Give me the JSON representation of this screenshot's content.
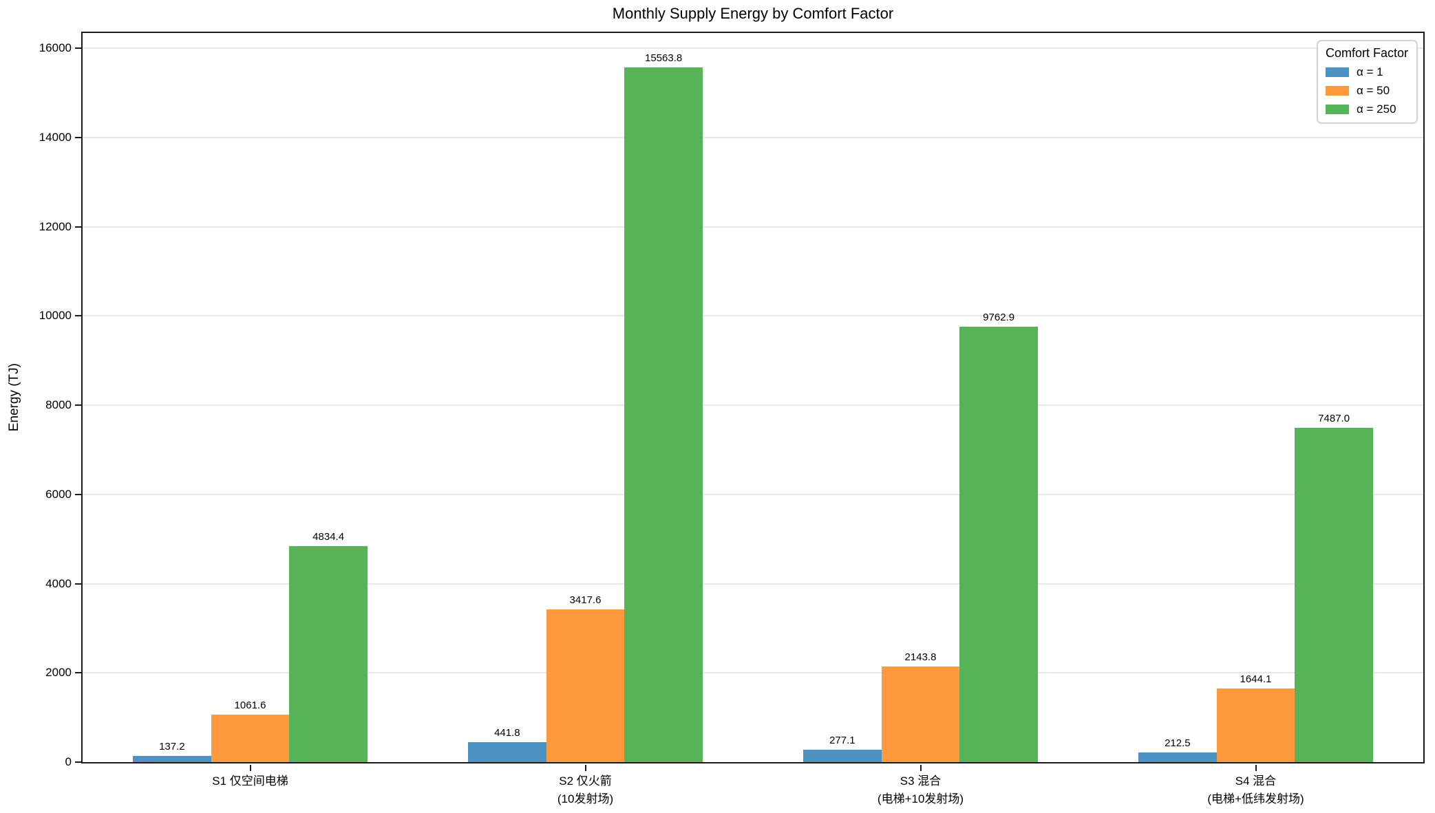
{
  "figure": {
    "title": "Monthly Supply Energy by Comfort Factor"
  },
  "chart_data": {
    "type": "bar",
    "title": "Monthly Supply Energy by Comfort Factor",
    "xlabel": "",
    "ylabel": "Energy (TJ)",
    "categories": [
      "S1 仅空间电梯",
      "S2 仅火箭\n(10发射场)",
      "S3 混合\n(电梯+10发射场)",
      "S4 混合\n(电梯+低纬发射场)"
    ],
    "series": [
      {
        "name": "α = 1",
        "color": "#4C92C3",
        "values": [
          137.2,
          441.8,
          277.1,
          212.5
        ]
      },
      {
        "name": "α = 50",
        "color": "#FF993E",
        "values": [
          1061.6,
          3417.6,
          2143.8,
          1644.1
        ]
      },
      {
        "name": "α = 250",
        "color": "#57B357",
        "values": [
          4834.4,
          15563.8,
          9762.9,
          7487.0
        ]
      }
    ],
    "bar_value_labels": true,
    "y_ticks": [
      0,
      2000,
      4000,
      6000,
      8000,
      10000,
      12000,
      14000,
      16000
    ],
    "ylim": [
      0,
      16342
    ],
    "grid": "horizontal-light",
    "legend": {
      "title": "Comfort Factor",
      "position": "upper-right"
    },
    "group_width_fraction": 0.7
  },
  "colors": {
    "background": "#ffffff",
    "axis": "#1a1a1a",
    "grid": "#e7e7e7",
    "text": "#000000",
    "legend_border": "#d2d2d2"
  }
}
